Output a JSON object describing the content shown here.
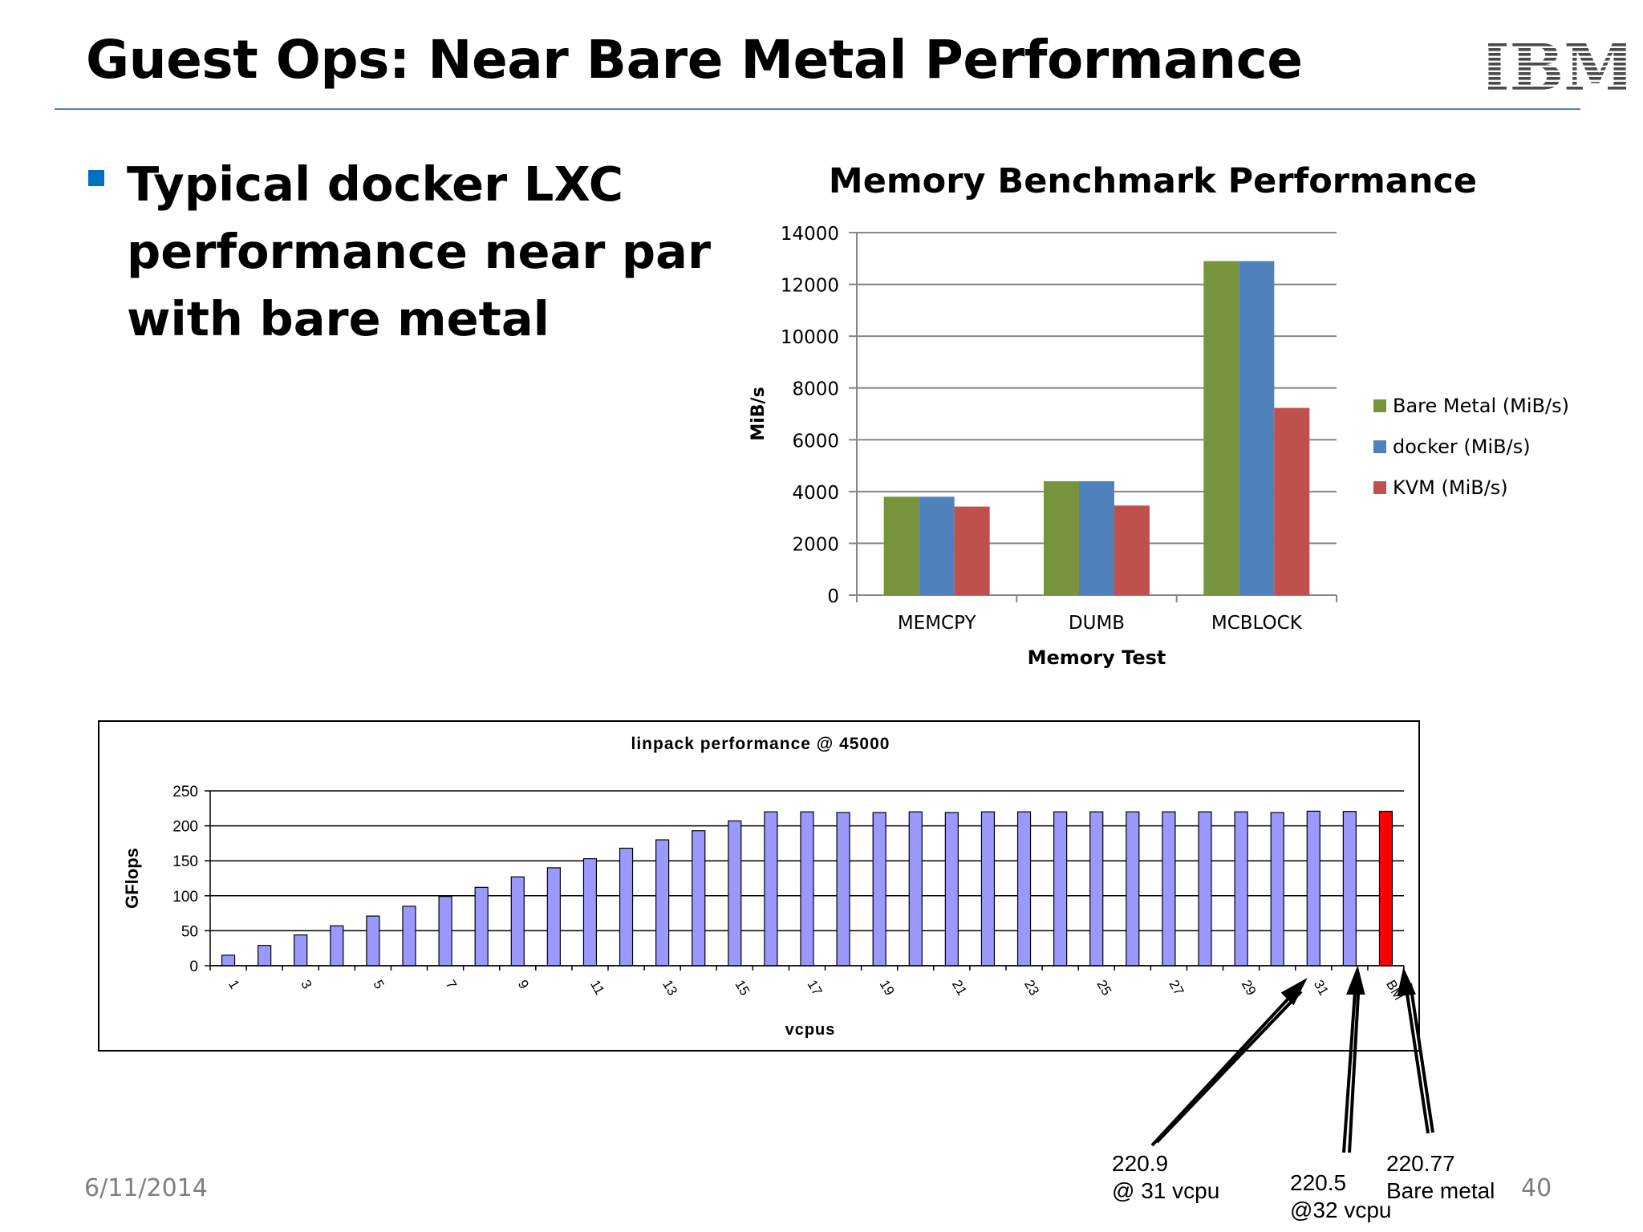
{
  "slide": {
    "title": "Guest Ops: Near Bare Metal Performance",
    "logo_text": "IBM",
    "bullet": "Typical docker LXC performance near par with bare metal",
    "footer_date": "6/11/2014",
    "page_number": "40"
  },
  "colors": {
    "title_rule": "#4f81bd",
    "bullet_marker": "#0070c0",
    "bare_metal": "#77933c",
    "docker": "#4f81bd",
    "kvm": "#c0504d",
    "linpack_bar": "#9999ff",
    "linpack_highlight": "#ff0000"
  },
  "annotations": [
    {
      "line1": "220.9",
      "line2": "@ 31 vcpu"
    },
    {
      "line1": "220.5",
      "line2": "@32 vcpu"
    },
    {
      "line1": "220.77",
      "line2": "Bare metal"
    }
  ],
  "chart_data": [
    {
      "type": "bar",
      "title": "Memory Benchmark Performance",
      "xlabel": "Memory Test",
      "ylabel": "MiB/s",
      "ylim": [
        0,
        14000
      ],
      "yticks": [
        0,
        2000,
        4000,
        6000,
        8000,
        10000,
        12000,
        14000
      ],
      "grid": true,
      "legend_position": "right",
      "categories": [
        "MEMCPY",
        "DUMB",
        "MCBLOCK"
      ],
      "series": [
        {
          "name": "Bare Metal (MiB/s)",
          "color": "#77933c",
          "values": [
            3800,
            4400,
            12900
          ]
        },
        {
          "name": "docker (MiB/s)",
          "color": "#4f81bd",
          "values": [
            3800,
            4400,
            12900
          ]
        },
        {
          "name": "KVM (MiB/s)",
          "color": "#c0504d",
          "values": [
            3420,
            3460,
            7230
          ]
        }
      ]
    },
    {
      "type": "bar",
      "title": "linpack performance @ 45000",
      "xlabel": "vcpus",
      "ylabel": "GFlops",
      "ylim": [
        0,
        250
      ],
      "yticks": [
        0,
        50,
        100,
        150,
        200,
        250
      ],
      "grid": true,
      "categories": [
        "1",
        "2",
        "3",
        "4",
        "5",
        "6",
        "7",
        "8",
        "9",
        "10",
        "11",
        "12",
        "13",
        "14",
        "15",
        "16",
        "17",
        "18",
        "19",
        "20",
        "21",
        "22",
        "23",
        "24",
        "25",
        "26",
        "27",
        "28",
        "29",
        "30",
        "31",
        "32",
        "BM"
      ],
      "tick_labels": [
        "1",
        "3",
        "5",
        "7",
        "9",
        "11",
        "13",
        "15",
        "17",
        "19",
        "21",
        "23",
        "25",
        "27",
        "29",
        "31",
        "BM"
      ],
      "values": [
        15,
        29,
        44,
        57,
        71,
        85,
        99,
        112,
        127,
        140,
        153,
        168,
        180,
        193,
        207,
        220,
        220,
        219,
        219,
        220,
        219,
        220,
        220,
        220,
        220,
        220,
        220,
        220,
        220,
        219,
        220.9,
        220.5,
        220.77
      ],
      "highlight_category": "BM"
    }
  ]
}
